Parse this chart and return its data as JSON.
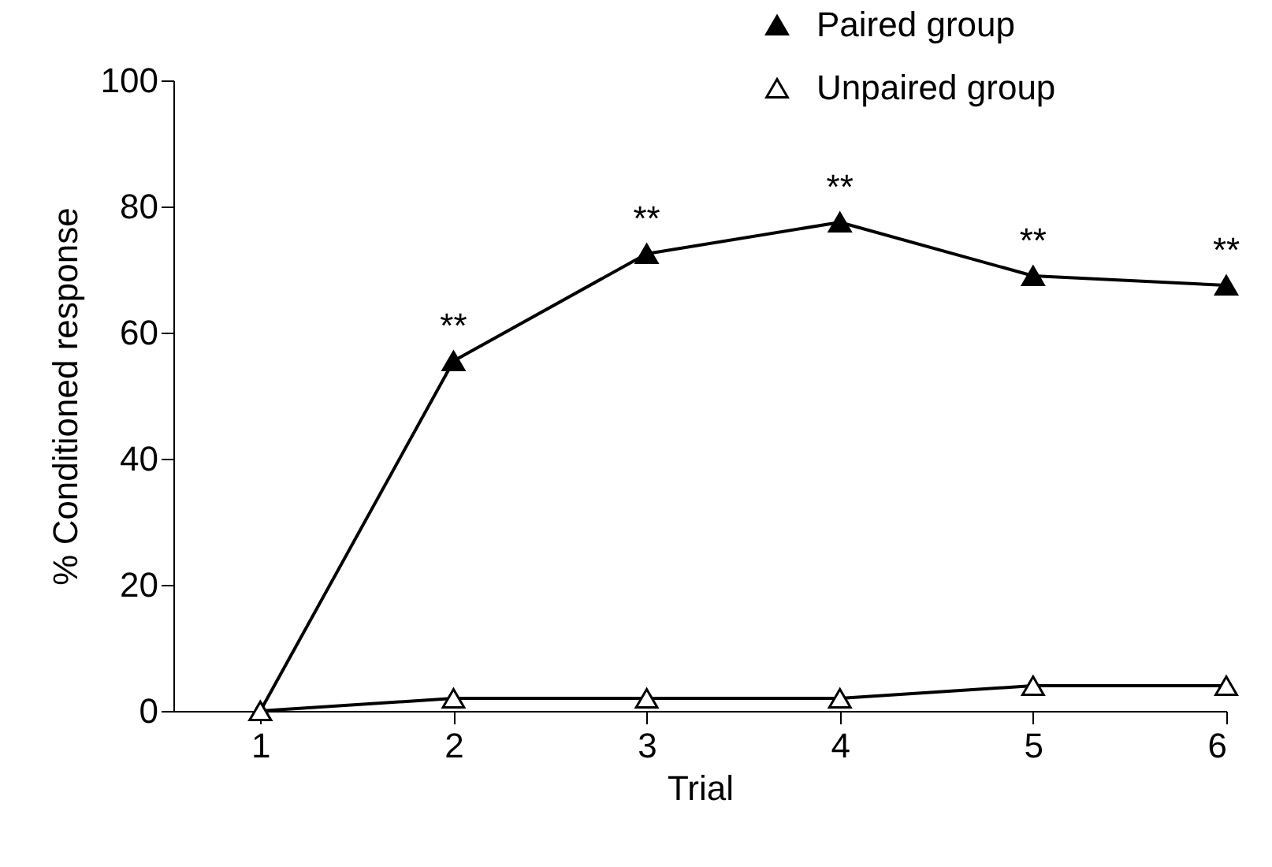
{
  "chart_data": {
    "type": "line",
    "xlabel": "Trial",
    "ylabel": "% Conditioned response",
    "x": [
      1,
      2,
      3,
      4,
      5,
      6
    ],
    "series": [
      {
        "name": "Paired group",
        "color": "#000000",
        "values": [
          0,
          55.5,
          72.5,
          77.5,
          69,
          67.5
        ]
      },
      {
        "name": "Unpaired group",
        "color": "#000000",
        "values": [
          0,
          2,
          2,
          2,
          4,
          4
        ]
      }
    ],
    "xlim": [
      0.55,
      6
    ],
    "xticks": [
      1,
      2,
      3,
      4,
      5,
      6
    ],
    "ylim": [
      0,
      100
    ],
    "yticks": [
      0,
      20,
      40,
      60,
      80,
      100
    ],
    "marker": "triangle",
    "grid": false,
    "legend": "top right",
    "annotations": [
      {
        "text": "**",
        "x": 2,
        "y": 55.5
      },
      {
        "text": "**",
        "x": 3,
        "y": 72.5
      },
      {
        "text": "**",
        "x": 4,
        "y": 77.5
      },
      {
        "text": "**",
        "x": 5,
        "y": 69
      },
      {
        "text": "**",
        "x": 6,
        "y": 67.5
      }
    ]
  }
}
